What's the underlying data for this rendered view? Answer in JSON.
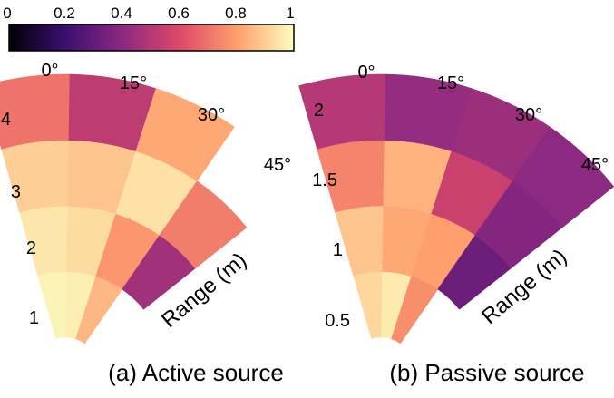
{
  "colorbar": {
    "ticks": [
      "0",
      "0.2",
      "0.4",
      "0.6",
      "0.8",
      "1"
    ],
    "range": [
      0,
      1
    ],
    "colormap": "magma",
    "stops": [
      "#000004",
      "#3b0f70",
      "#8c2981",
      "#de4968",
      "#fe9f6d",
      "#fcfdbf"
    ]
  },
  "chart_data": [
    {
      "type": "heatmap",
      "projection": "polar-sector",
      "caption": "(a) Active source",
      "range_label": "Range (m)",
      "angles": [
        0,
        15,
        30,
        45
      ],
      "angle_labels": [
        "0°",
        "15°",
        "30°",
        "45°"
      ],
      "range_edges": [
        0.5,
        1.5,
        2.5,
        3.5,
        4.5
      ],
      "range_ticks": [
        1,
        2,
        3,
        4
      ],
      "range_tick_labels": [
        "1",
        "2",
        "3",
        "4"
      ],
      "values": [
        [
          0.98,
          0.97,
          0.85,
          null
        ],
        [
          0.95,
          0.93,
          0.78,
          0.45
        ],
        [
          0.9,
          0.88,
          0.94,
          0.72
        ],
        [
          0.7,
          0.52,
          0.82,
          null
        ]
      ]
    },
    {
      "type": "heatmap",
      "projection": "polar-sector",
      "caption": "(b) Passive source",
      "range_label": "Range (m)",
      "angles": [
        0,
        15,
        30,
        45
      ],
      "angle_labels": [
        "0°",
        "15°",
        "30°",
        "45°"
      ],
      "range_edges": [
        0.25,
        0.75,
        1.25,
        1.75,
        2.25
      ],
      "range_ticks": [
        0.5,
        1,
        1.5,
        2
      ],
      "range_tick_labels": [
        "0.5",
        "1",
        "1.5",
        "2"
      ],
      "values": [
        [
          0.92,
          0.96,
          0.76,
          null
        ],
        [
          0.88,
          0.82,
          0.8,
          0.32
        ],
        [
          0.74,
          0.84,
          0.55,
          0.38
        ],
        [
          0.5,
          0.42,
          0.44,
          0.4
        ]
      ]
    }
  ]
}
